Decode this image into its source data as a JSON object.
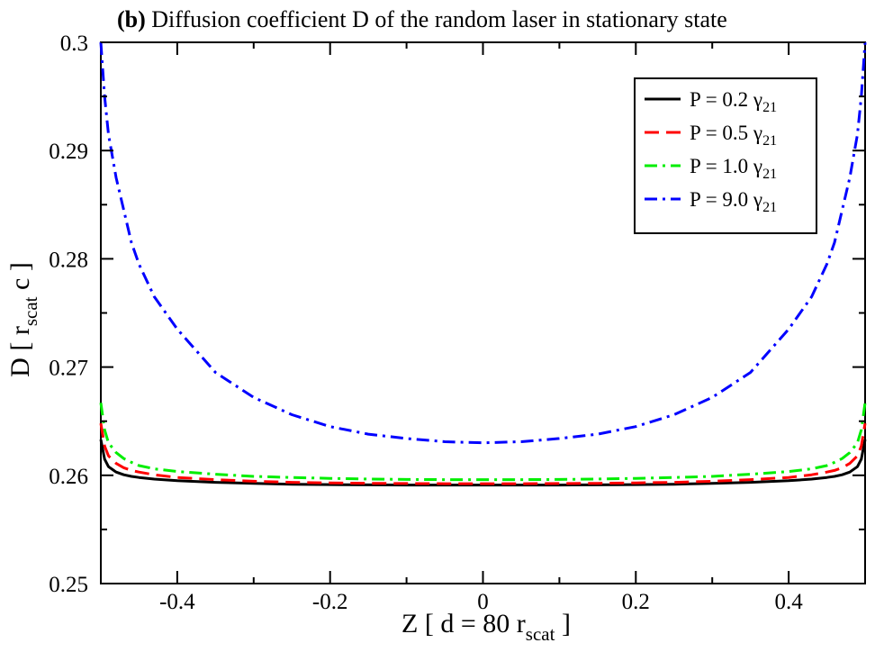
{
  "chart_data": {
    "type": "line",
    "title_bold": "(b)",
    "title_rest": " Diffusion coefficient D of the random laser in stationary state",
    "xlabel": {
      "main": "Z [ d = 80 r",
      "sub": "scat",
      "end": " ]"
    },
    "ylabel": {
      "main": "D [ r",
      "sub": "scat",
      "end": " c ]"
    },
    "xlim": [
      -0.5,
      0.5
    ],
    "ylim": [
      0.25,
      0.3
    ],
    "xticks": [
      -0.4,
      -0.2,
      0,
      0.2,
      0.4
    ],
    "xtick_labels": [
      "-0.4",
      "-0.2",
      "0",
      "0.2",
      "0.4"
    ],
    "yticks": [
      0.25,
      0.26,
      0.27,
      0.28,
      0.29,
      0.3
    ],
    "ytick_labels": [
      "0.25",
      "0.26",
      "0.27",
      "0.28",
      "0.29",
      "0.3"
    ],
    "grid": false,
    "legend_position": "top-right",
    "x": [
      -0.5,
      -0.495,
      -0.49,
      -0.48,
      -0.47,
      -0.46,
      -0.45,
      -0.43,
      -0.4,
      -0.35,
      -0.3,
      -0.25,
      -0.2,
      -0.15,
      -0.1,
      -0.05,
      0,
      0.05,
      0.1,
      0.15,
      0.2,
      0.25,
      0.3,
      0.35,
      0.4,
      0.43,
      0.45,
      0.46,
      0.47,
      0.48,
      0.49,
      0.495,
      0.5
    ],
    "series": [
      {
        "name": "P =  0.2 γ21",
        "label_main": "P =  0.2 γ",
        "label_sub": "21",
        "color": "#000000",
        "dash": "solid",
        "values": [
          0.2633,
          0.2615,
          0.2608,
          0.2603,
          0.26005,
          0.2599,
          0.2598,
          0.25965,
          0.2595,
          0.25935,
          0.25925,
          0.25918,
          0.25914,
          0.25912,
          0.2591,
          0.2591,
          0.2591,
          0.2591,
          0.2591,
          0.25912,
          0.25914,
          0.25918,
          0.25925,
          0.25935,
          0.2595,
          0.25965,
          0.2598,
          0.2599,
          0.26005,
          0.2603,
          0.2608,
          0.2615,
          0.2633
        ]
      },
      {
        "name": "P =  0.5 γ21",
        "label_main": "P =  0.5 γ",
        "label_sub": "21",
        "color": "#ff0000",
        "dash": "dashed",
        "values": [
          0.2648,
          0.2627,
          0.2618,
          0.2611,
          0.2607,
          0.26045,
          0.2603,
          0.26005,
          0.2598,
          0.2596,
          0.25945,
          0.25935,
          0.2593,
          0.25926,
          0.25924,
          0.25923,
          0.25923,
          0.25923,
          0.25924,
          0.25926,
          0.2593,
          0.25935,
          0.25945,
          0.2596,
          0.2598,
          0.26005,
          0.2603,
          0.26045,
          0.2607,
          0.2611,
          0.2618,
          0.2627,
          0.2648
        ]
      },
      {
        "name": "P =  1.0 γ21",
        "label_main": "P =  1.0 γ",
        "label_sub": "21",
        "color": "#00ee00",
        "dash": "dashdot",
        "values": [
          0.2667,
          0.2642,
          0.263,
          0.2621,
          0.26155,
          0.2612,
          0.2609,
          0.2606,
          0.26035,
          0.2601,
          0.2599,
          0.2598,
          0.25972,
          0.25966,
          0.25962,
          0.2596,
          0.2596,
          0.2596,
          0.25962,
          0.25966,
          0.25972,
          0.2598,
          0.2599,
          0.2601,
          0.26035,
          0.2606,
          0.2609,
          0.2612,
          0.26155,
          0.2621,
          0.263,
          0.2642,
          0.2667
        ]
      },
      {
        "name": "P =  9.0 γ21",
        "label_main": "P =  9.0 γ",
        "label_sub": "21",
        "color": "#0000ff",
        "dash": "dashdot",
        "values": [
          0.3,
          0.295,
          0.2915,
          0.2875,
          0.2845,
          0.2815,
          0.2795,
          0.2765,
          0.2735,
          0.2695,
          0.2672,
          0.2656,
          0.2645,
          0.2638,
          0.2634,
          0.2631,
          0.263,
          0.2631,
          0.2634,
          0.2638,
          0.2645,
          0.2656,
          0.2672,
          0.2695,
          0.2735,
          0.2765,
          0.2795,
          0.2815,
          0.2845,
          0.2875,
          0.2915,
          0.295,
          0.3
        ]
      }
    ]
  }
}
